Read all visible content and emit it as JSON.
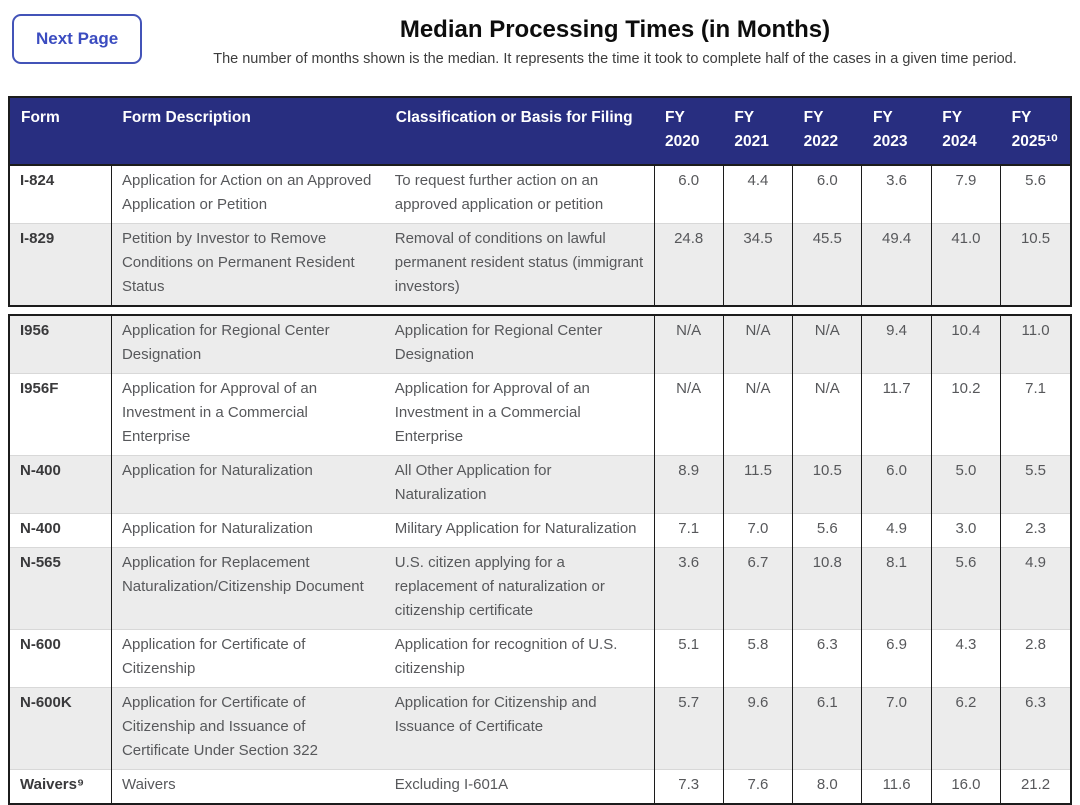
{
  "page": {
    "next_page_button": "Next Page",
    "title": "Median Processing Times (in Months)",
    "subtitle": "The number of months shown is the median. It represents the time it took to complete half of the cases in a given time period."
  },
  "colors": {
    "header_bg": "#282e80",
    "alt_row_bg": "#ececec",
    "accent": "#3b4cc0",
    "border": "#1c1c1c"
  },
  "table": {
    "columns": [
      "Form",
      "Form Description",
      "Classification or Basis for Filing",
      "FY 2020",
      "FY 2021",
      "FY 2022",
      "FY 2023",
      "FY 2024",
      "FY 2025¹⁰"
    ],
    "segments": [
      {
        "rows": [
          {
            "form": "I-824",
            "description": "Application for Action on an Approved Application or Petition",
            "classification": "To request further action on an approved application or petition",
            "values": [
              "6.0",
              "4.4",
              "6.0",
              "3.6",
              "7.9",
              "5.6"
            ]
          },
          {
            "form": "I-829",
            "description": "Petition by Investor to Remove Conditions on Permanent Resident Status",
            "classification": "Removal of conditions on lawful permanent resident status (immigrant investors)",
            "values": [
              "24.8",
              "34.5",
              "45.5",
              "49.4",
              "41.0",
              "10.5"
            ]
          }
        ]
      },
      {
        "rows": [
          {
            "form": "I956",
            "description": "Application for Regional Center Designation",
            "classification": "Application for Regional Center Designation",
            "values": [
              "N/A",
              "N/A",
              "N/A",
              "9.4",
              "10.4",
              "11.0"
            ]
          },
          {
            "form": "I956F",
            "description": "Application for Approval of an Investment in a Commercial Enterprise",
            "classification": "Application for Approval of an Investment in a Commercial Enterprise",
            "values": [
              "N/A",
              "N/A",
              "N/A",
              "11.7",
              "10.2",
              "7.1"
            ]
          },
          {
            "form": "N-400",
            "description": "Application for Naturalization",
            "classification": "All Other Application for Naturalization",
            "values": [
              "8.9",
              "11.5",
              "10.5",
              "6.0",
              "5.0",
              "5.5"
            ]
          },
          {
            "form": "N-400",
            "description": "Application for Naturalization",
            "classification": "Military Application for Naturalization",
            "values": [
              "7.1",
              "7.0",
              "5.6",
              "4.9",
              "3.0",
              "2.3"
            ]
          },
          {
            "form": "N-565",
            "description": "Application for Replacement Naturalization/Citizenship Document",
            "classification": "U.S. citizen applying for a replacement of naturalization or citizenship certificate",
            "values": [
              "3.6",
              "6.7",
              "10.8",
              "8.1",
              "5.6",
              "4.9"
            ]
          },
          {
            "form": "N-600",
            "description": "Application for Certificate of Citizenship",
            "classification": "Application for recognition of U.S. citizenship",
            "values": [
              "5.1",
              "5.8",
              "6.3",
              "6.9",
              "4.3",
              "2.8"
            ]
          },
          {
            "form": "N-600K",
            "description": "Application for Certificate of Citizenship and Issuance of Certificate Under Section 322",
            "classification": "Application for Citizenship and Issuance of Certificate",
            "values": [
              "5.7",
              "9.6",
              "6.1",
              "7.0",
              "6.2",
              "6.3"
            ]
          },
          {
            "form": "Waivers⁹",
            "description": "Waivers",
            "classification": "Excluding I-601A",
            "values": [
              "7.3",
              "7.6",
              "8.0",
              "11.6",
              "16.0",
              "21.2"
            ]
          }
        ]
      }
    ]
  }
}
